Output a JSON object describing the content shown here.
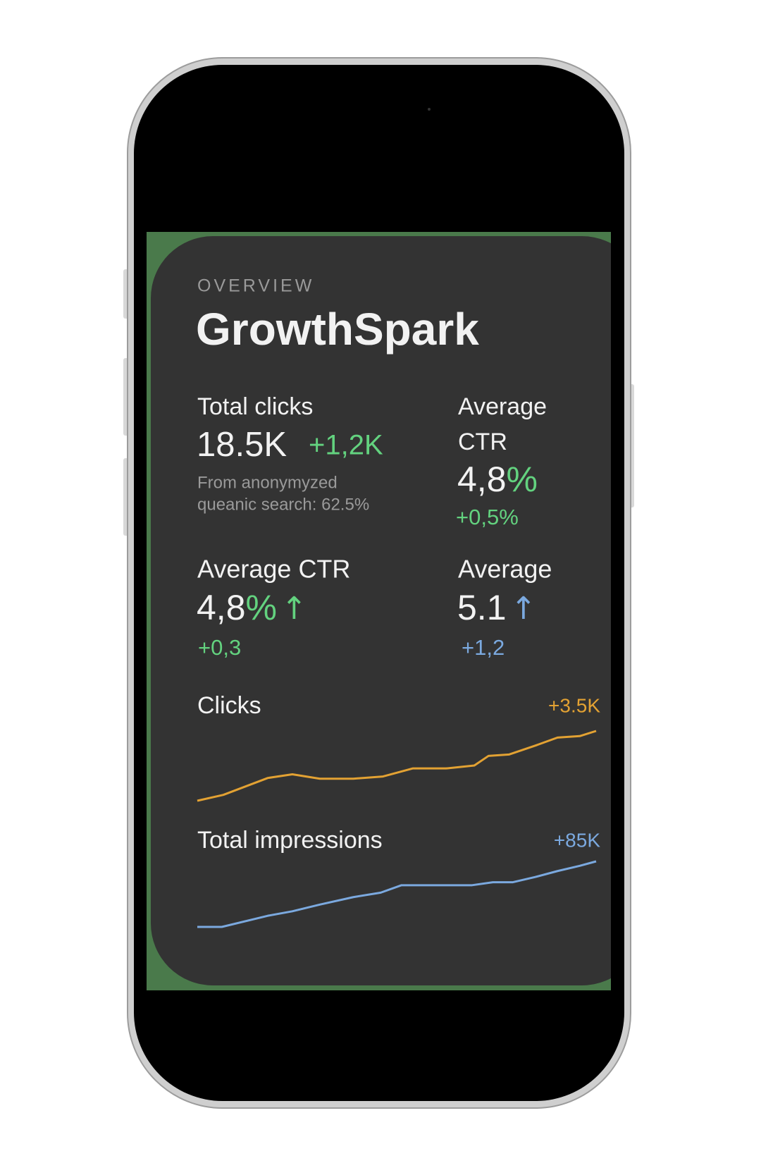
{
  "header": {
    "eyebrow": "OVERVIEW",
    "title": "GrowthSpark"
  },
  "metrics": [
    {
      "label": "Total clicks",
      "value": "18.5K",
      "change": "+1,2K",
      "note_lines": [
        "From anonymyzed",
        "queanic search: 62.5%"
      ]
    },
    {
      "label_lines": [
        "Average",
        "CTR"
      ],
      "value": "4,8",
      "unit": "%",
      "change": "+0,5%"
    },
    {
      "label": "Average CTR",
      "value": "4,8",
      "unit": "%",
      "arrow": "↑",
      "change": "+0,3"
    },
    {
      "label": "Average",
      "value": "5.1",
      "arrow": "↑",
      "change": "+1,2"
    }
  ],
  "chart_data": [
    {
      "type": "line",
      "title": "Clicks",
      "change": "+3.5K",
      "color": "#e3a233",
      "x": [
        0,
        35,
        95,
        128,
        165,
        210,
        250,
        290,
        335,
        373,
        392,
        420,
        455,
        485,
        515,
        537
      ],
      "values": [
        0,
        8,
        31,
        36,
        30,
        30,
        33,
        44,
        44,
        48,
        61,
        63,
        75,
        86,
        88,
        95
      ]
    },
    {
      "type": "line",
      "title": "Total impressions",
      "change": "+85K",
      "color": "#7ba9df",
      "x": [
        0,
        33,
        95,
        128,
        165,
        210,
        247,
        275,
        335,
        370,
        398,
        425,
        455,
        485,
        515,
        537
      ],
      "values": [
        0,
        0,
        15,
        21,
        30,
        40,
        46,
        56,
        56,
        56,
        60,
        60,
        67,
        75,
        82,
        88
      ]
    }
  ]
}
